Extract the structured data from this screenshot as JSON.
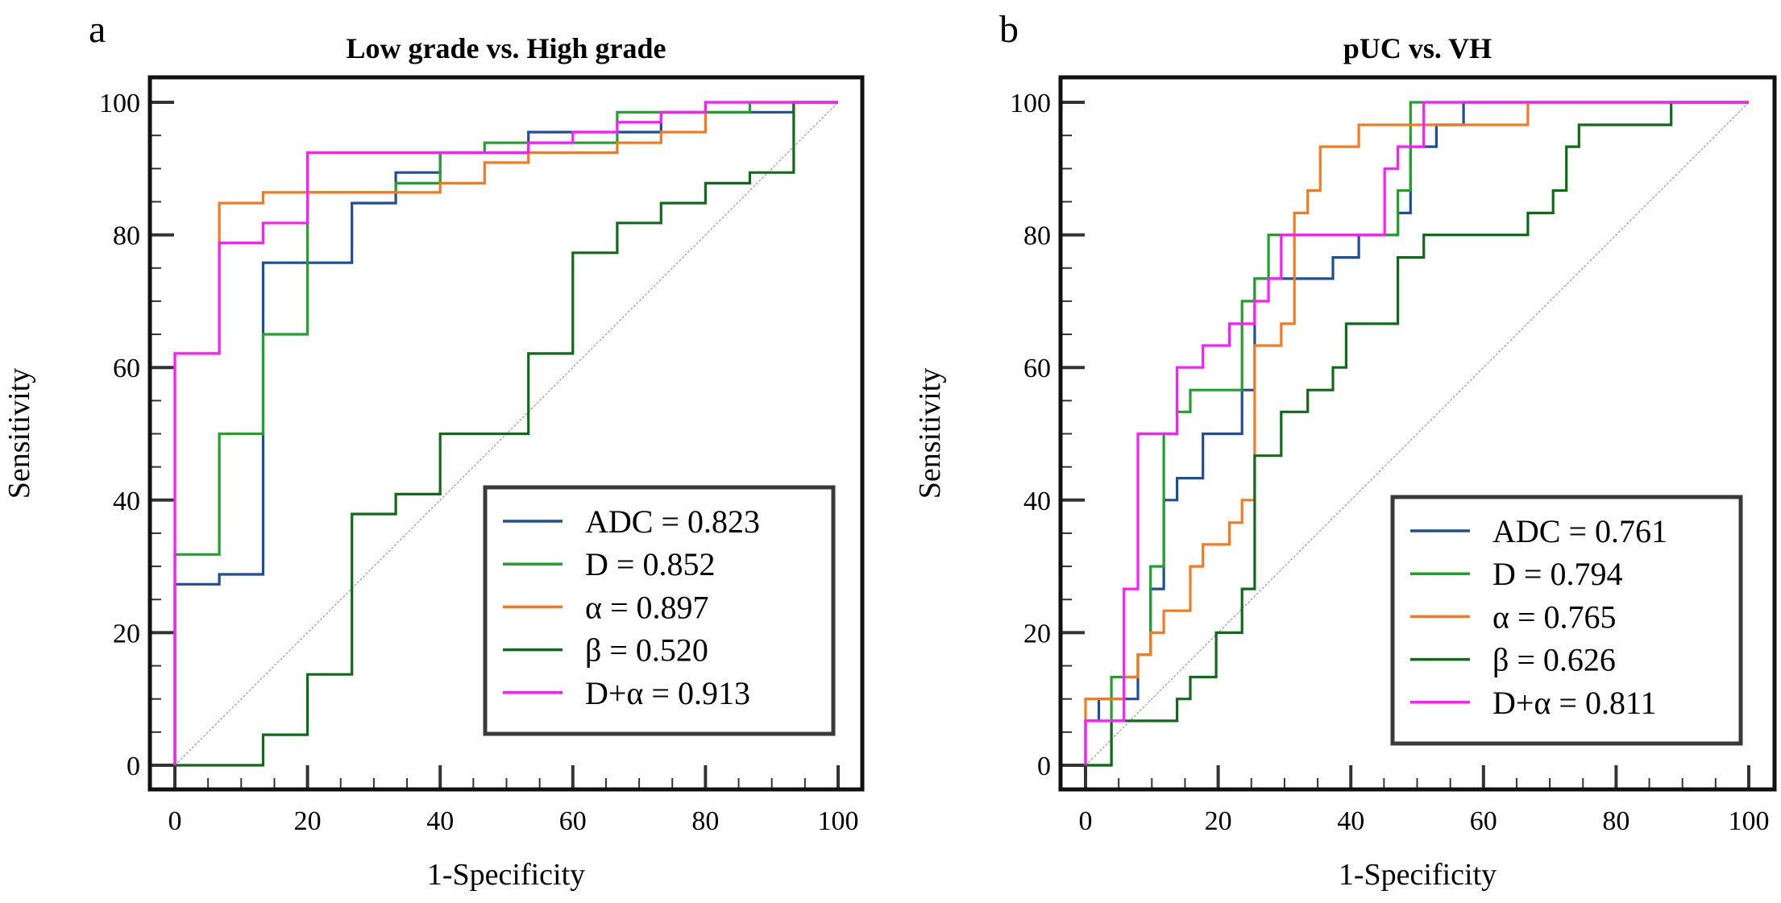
{
  "chart_data": [
    {
      "type": "line",
      "panel_label": "a",
      "title": "Low grade vs. High grade",
      "xlabel": "1-Specificity",
      "ylabel": "Sensitivity",
      "xlim": [
        0,
        100
      ],
      "ylim": [
        0,
        100
      ],
      "xticks": [
        "0",
        "20",
        "40",
        "60",
        "80",
        "100"
      ],
      "yticks": [
        "0",
        "20",
        "40",
        "60",
        "80",
        "100"
      ],
      "legend_position": "bottom-right",
      "reference_line": "diagonal",
      "series": [
        {
          "name": "ADC = 0.823",
          "color": "#1f4e99",
          "points": [
            [
              0,
              0
            ],
            [
              0,
              27.3
            ],
            [
              6.7,
              27.3
            ],
            [
              6.7,
              28.8
            ],
            [
              13.3,
              28.8
            ],
            [
              13.3,
              75.8
            ],
            [
              26.7,
              75.8
            ],
            [
              26.7,
              84.8
            ],
            [
              33.3,
              84.8
            ],
            [
              33.3,
              89.4
            ],
            [
              40,
              89.4
            ],
            [
              40,
              92.4
            ],
            [
              53.3,
              92.4
            ],
            [
              53.3,
              95.5
            ],
            [
              73.3,
              95.5
            ],
            [
              73.3,
              98.5
            ],
            [
              93.3,
              98.5
            ],
            [
              93.3,
              100
            ],
            [
              100,
              100
            ]
          ]
        },
        {
          "name": "D = 0.852",
          "color": "#22a02c",
          "points": [
            [
              0,
              0
            ],
            [
              0,
              31.8
            ],
            [
              6.7,
              31.8
            ],
            [
              6.7,
              50
            ],
            [
              13.3,
              50
            ],
            [
              13.3,
              65
            ],
            [
              20,
              65
            ],
            [
              20,
              86.4
            ],
            [
              33.3,
              86.4
            ],
            [
              33.3,
              87.8
            ],
            [
              40,
              87.8
            ],
            [
              40,
              92.4
            ],
            [
              46.7,
              92.4
            ],
            [
              46.7,
              93.9
            ],
            [
              66.7,
              93.9
            ],
            [
              66.7,
              98.5
            ],
            [
              86.7,
              98.5
            ],
            [
              86.7,
              100
            ],
            [
              100,
              100
            ]
          ]
        },
        {
          "name": "α = 0.897",
          "color": "#f47a20",
          "points": [
            [
              0,
              0
            ],
            [
              0,
              62.1
            ],
            [
              6.7,
              62.1
            ],
            [
              6.7,
              84.8
            ],
            [
              13.3,
              84.8
            ],
            [
              13.3,
              86.4
            ],
            [
              40,
              86.4
            ],
            [
              40,
              87.8
            ],
            [
              46.7,
              87.8
            ],
            [
              46.7,
              90.9
            ],
            [
              53.3,
              90.9
            ],
            [
              53.3,
              92.4
            ],
            [
              66.7,
              92.4
            ],
            [
              66.7,
              93.9
            ],
            [
              73.3,
              93.9
            ],
            [
              73.3,
              95.5
            ],
            [
              80,
              95.5
            ],
            [
              80,
              100
            ],
            [
              100,
              100
            ]
          ]
        },
        {
          "name": "β = 0.520",
          "color": "#0f6b1a",
          "points": [
            [
              0,
              0
            ],
            [
              13.3,
              0
            ],
            [
              13.3,
              4.6
            ],
            [
              20,
              4.6
            ],
            [
              20,
              13.7
            ],
            [
              26.7,
              13.7
            ],
            [
              26.7,
              37.9
            ],
            [
              33.3,
              37.9
            ],
            [
              33.3,
              40.9
            ],
            [
              40,
              40.9
            ],
            [
              40,
              50
            ],
            [
              53.3,
              50
            ],
            [
              53.3,
              62.1
            ],
            [
              60,
              62.1
            ],
            [
              60,
              77.3
            ],
            [
              66.7,
              77.3
            ],
            [
              66.7,
              81.8
            ],
            [
              73.3,
              81.8
            ],
            [
              73.3,
              84.8
            ],
            [
              80,
              84.8
            ],
            [
              80,
              87.8
            ],
            [
              86.7,
              87.8
            ],
            [
              86.7,
              89.4
            ],
            [
              93.3,
              89.4
            ],
            [
              93.3,
              100
            ],
            [
              100,
              100
            ]
          ]
        },
        {
          "name": "D+α = 0.913",
          "color": "#ff1aff",
          "points": [
            [
              0,
              0
            ],
            [
              0,
              62.1
            ],
            [
              6.7,
              62.1
            ],
            [
              6.7,
              78.8
            ],
            [
              13.3,
              78.8
            ],
            [
              13.3,
              81.8
            ],
            [
              20,
              81.8
            ],
            [
              20,
              92.4
            ],
            [
              53.3,
              92.4
            ],
            [
              53.3,
              93.9
            ],
            [
              60,
              93.9
            ],
            [
              60,
              95.5
            ],
            [
              66.7,
              95.5
            ],
            [
              66.7,
              97
            ],
            [
              73.3,
              97
            ],
            [
              73.3,
              98.5
            ],
            [
              80,
              98.5
            ],
            [
              80,
              100
            ],
            [
              100,
              100
            ]
          ]
        }
      ]
    },
    {
      "type": "line",
      "panel_label": "b",
      "title": "pUC vs. VH",
      "xlabel": "1-Specificity",
      "ylabel": "Sensitivity",
      "xlim": [
        0,
        100
      ],
      "ylim": [
        0,
        100
      ],
      "xticks": [
        "0",
        "20",
        "40",
        "60",
        "80",
        "100"
      ],
      "yticks": [
        "0",
        "20",
        "40",
        "60",
        "80",
        "100"
      ],
      "legend_position": "bottom-right",
      "reference_line": "diagonal",
      "series": [
        {
          "name": "ADC = 0.761",
          "color": "#1f4e99",
          "points": [
            [
              0,
              0
            ],
            [
              0,
              6.7
            ],
            [
              2,
              6.7
            ],
            [
              2,
              10
            ],
            [
              7.9,
              10
            ],
            [
              7.9,
              16.7
            ],
            [
              9.8,
              16.7
            ],
            [
              9.8,
              26.6
            ],
            [
              11.8,
              26.6
            ],
            [
              11.8,
              40
            ],
            [
              13.8,
              40
            ],
            [
              13.8,
              43.3
            ],
            [
              17.7,
              43.3
            ],
            [
              17.7,
              50
            ],
            [
              23.6,
              50
            ],
            [
              23.6,
              56.6
            ],
            [
              25.5,
              56.6
            ],
            [
              25.5,
              73.4
            ],
            [
              37.3,
              73.4
            ],
            [
              37.3,
              76.6
            ],
            [
              41.2,
              76.6
            ],
            [
              41.2,
              80
            ],
            [
              47.1,
              80
            ],
            [
              47.1,
              83.3
            ],
            [
              49,
              83.3
            ],
            [
              49,
              93.3
            ],
            [
              52.9,
              93.3
            ],
            [
              52.9,
              96.6
            ],
            [
              57,
              96.6
            ],
            [
              57,
              100
            ],
            [
              100,
              100
            ]
          ]
        },
        {
          "name": "D = 0.794",
          "color": "#22a02c",
          "points": [
            [
              0,
              0
            ],
            [
              3.9,
              0
            ],
            [
              3.9,
              13.3
            ],
            [
              7.9,
              13.3
            ],
            [
              7.9,
              16.7
            ],
            [
              9.8,
              16.7
            ],
            [
              9.8,
              30
            ],
            [
              11.8,
              30
            ],
            [
              11.8,
              50
            ],
            [
              13.8,
              50
            ],
            [
              13.8,
              53.3
            ],
            [
              15.8,
              53.3
            ],
            [
              15.8,
              56.6
            ],
            [
              23.6,
              56.6
            ],
            [
              23.6,
              70
            ],
            [
              25.5,
              70
            ],
            [
              25.5,
              73.4
            ],
            [
              27.6,
              73.4
            ],
            [
              27.6,
              80
            ],
            [
              47.1,
              80
            ],
            [
              47.1,
              86.7
            ],
            [
              49,
              86.7
            ],
            [
              49,
              100
            ],
            [
              100,
              100
            ]
          ]
        },
        {
          "name": "α = 0.765",
          "color": "#f47a20",
          "points": [
            [
              0,
              0
            ],
            [
              0,
              10
            ],
            [
              5.8,
              10
            ],
            [
              5.8,
              13.3
            ],
            [
              7.9,
              13.3
            ],
            [
              7.9,
              16.7
            ],
            [
              9.8,
              16.7
            ],
            [
              9.8,
              20
            ],
            [
              11.8,
              20
            ],
            [
              11.8,
              23.3
            ],
            [
              15.8,
              23.3
            ],
            [
              15.8,
              30
            ],
            [
              17.7,
              30
            ],
            [
              17.7,
              33.3
            ],
            [
              21.7,
              33.3
            ],
            [
              21.7,
              36.6
            ],
            [
              23.6,
              36.6
            ],
            [
              23.6,
              40
            ],
            [
              25.5,
              40
            ],
            [
              25.5,
              63.3
            ],
            [
              29.5,
              63.3
            ],
            [
              29.5,
              66.6
            ],
            [
              31.5,
              66.6
            ],
            [
              31.5,
              83.3
            ],
            [
              33.5,
              83.3
            ],
            [
              33.5,
              86.7
            ],
            [
              35.4,
              86.7
            ],
            [
              35.4,
              93.3
            ],
            [
              41.2,
              93.3
            ],
            [
              41.2,
              96.6
            ],
            [
              66.7,
              96.6
            ],
            [
              66.7,
              100
            ],
            [
              100,
              100
            ]
          ]
        },
        {
          "name": "β = 0.626",
          "color": "#0f6b1a",
          "points": [
            [
              0,
              0
            ],
            [
              3.9,
              0
            ],
            [
              3.9,
              6.7
            ],
            [
              13.8,
              6.7
            ],
            [
              13.8,
              10
            ],
            [
              15.8,
              10
            ],
            [
              15.8,
              13.3
            ],
            [
              19.7,
              13.3
            ],
            [
              19.7,
              20
            ],
            [
              23.6,
              20
            ],
            [
              23.6,
              26.6
            ],
            [
              25.5,
              26.6
            ],
            [
              25.5,
              46.7
            ],
            [
              29.5,
              46.7
            ],
            [
              29.5,
              53.3
            ],
            [
              33.5,
              53.3
            ],
            [
              33.5,
              56.6
            ],
            [
              37.3,
              56.6
            ],
            [
              37.3,
              60
            ],
            [
              39.3,
              60
            ],
            [
              39.3,
              66.6
            ],
            [
              47.1,
              66.6
            ],
            [
              47.1,
              76.6
            ],
            [
              51,
              76.6
            ],
            [
              51,
              80
            ],
            [
              66.7,
              80
            ],
            [
              66.7,
              83.3
            ],
            [
              70.5,
              83.3
            ],
            [
              70.5,
              86.7
            ],
            [
              72.5,
              86.7
            ],
            [
              72.5,
              93.3
            ],
            [
              74.4,
              93.3
            ],
            [
              74.4,
              96.6
            ],
            [
              88.3,
              96.6
            ],
            [
              88.3,
              100
            ],
            [
              100,
              100
            ]
          ]
        },
        {
          "name": "D+α = 0.811",
          "color": "#ff1aff",
          "points": [
            [
              0,
              0
            ],
            [
              0,
              6.7
            ],
            [
              5.8,
              6.7
            ],
            [
              5.8,
              26.6
            ],
            [
              7.9,
              26.6
            ],
            [
              7.9,
              50
            ],
            [
              13.8,
              50
            ],
            [
              13.8,
              60
            ],
            [
              17.7,
              60
            ],
            [
              17.7,
              63.3
            ],
            [
              21.7,
              63.3
            ],
            [
              21.7,
              66.6
            ],
            [
              25.5,
              66.6
            ],
            [
              25.5,
              70
            ],
            [
              27.6,
              70
            ],
            [
              27.6,
              73.4
            ],
            [
              29.5,
              73.4
            ],
            [
              29.5,
              80
            ],
            [
              45.1,
              80
            ],
            [
              45.1,
              90
            ],
            [
              47.1,
              90
            ],
            [
              47.1,
              93.3
            ],
            [
              51,
              93.3
            ],
            [
              51,
              100
            ],
            [
              100,
              100
            ]
          ]
        }
      ]
    }
  ]
}
